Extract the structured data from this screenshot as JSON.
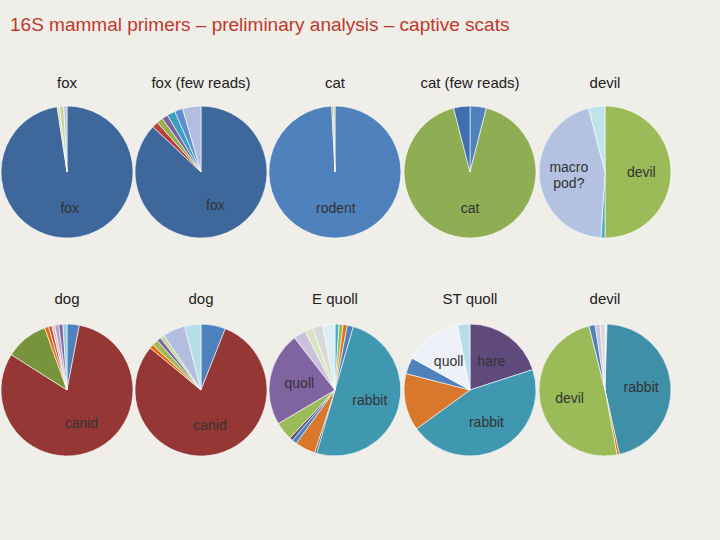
{
  "title": "16S mammal primers – preliminary analysis – captive scats",
  "chart_data": [
    {
      "type": "pie",
      "title": "fox",
      "categories": [
        "fox",
        null,
        null,
        null
      ],
      "values": [
        97.6,
        0.6,
        1.0,
        0.8
      ],
      "colors": [
        "#3e679c",
        "#d8d8b0",
        "#c9d49a",
        "#b9c9de"
      ]
    },
    {
      "type": "pie",
      "title": "fox (few reads)",
      "categories": [
        "fox",
        null,
        null,
        null,
        null,
        null,
        null
      ],
      "values": [
        87,
        1.5,
        1.5,
        1.5,
        2,
        2,
        4.5
      ],
      "colors": [
        "#3e679c",
        "#b7403d",
        "#8fb04a",
        "#7e62a0",
        "#3b9fbd",
        "#5b8fd0",
        "#b3bde0"
      ]
    },
    {
      "type": "pie",
      "title": "cat",
      "categories": [
        "rodent",
        null,
        null
      ],
      "values": [
        99.2,
        0.4,
        0.4
      ],
      "colors": [
        "#4f81bd",
        "#9bbb59",
        "#c9c59a"
      ]
    },
    {
      "type": "pie",
      "title": "cat (few reads)",
      "categories": [
        null,
        "cat",
        null
      ],
      "values": [
        4,
        92,
        4
      ],
      "colors": [
        "#4f81bd",
        "#8fad52",
        "#3e6fb0"
      ]
    },
    {
      "type": "pie",
      "title": "devil",
      "categories": [
        "devil",
        null,
        "macro pod?",
        null
      ],
      "values": [
        50,
        1,
        45,
        4
      ],
      "colors": [
        "#9bbb59",
        "#4bacc6",
        "#b3c2e0",
        "#bfe3ea"
      ]
    },
    {
      "type": "pie",
      "title": "dog",
      "categories": [
        null,
        "canid",
        null,
        null,
        null,
        null,
        null,
        null,
        null
      ],
      "values": [
        3,
        81,
        10.5,
        1,
        0.8,
        0.7,
        1,
        1,
        1
      ],
      "colors": [
        "#4f81bd",
        "#953735",
        "#77933c",
        "#e46c0a",
        "#c0504d",
        "#e6b9b8",
        "#b3a2c7",
        "#8064a2",
        "#93cddd"
      ]
    },
    {
      "type": "pie",
      "title": "dog",
      "categories": [
        null,
        "canid",
        null,
        null,
        null,
        null,
        null,
        null
      ],
      "values": [
        6,
        80,
        1,
        1.5,
        1,
        1,
        5.5,
        4
      ],
      "colors": [
        "#4f81bd",
        "#953735",
        "#e46c0a",
        "#9bbb59",
        "#8064a2",
        "#c3d69b",
        "#b3bde0",
        "#b7dee8"
      ]
    },
    {
      "type": "pie",
      "title": "E quoll",
      "categories": [
        null,
        null,
        null,
        null,
        "rabbit",
        null,
        null,
        null,
        null,
        null,
        "quoll",
        null,
        null,
        null,
        null
      ],
      "values": [
        1,
        1,
        1,
        1.5,
        50,
        0.5,
        5,
        1.2,
        0.8,
        4.5,
        23,
        3,
        2,
        2.5,
        3
      ],
      "colors": [
        "#4bacc6",
        "#9bbb59",
        "#e46c0a",
        "#4f81bd",
        "#3f97b0",
        "#595959",
        "#d9782d",
        "#4f81bd",
        "#604a7b",
        "#9bbb59",
        "#8064a2",
        "#ccc1da",
        "#d7e4bd",
        "#d9d9d9",
        "#dbeef3"
      ]
    },
    {
      "type": "pie",
      "title": "ST quoll",
      "categories": [
        "hare",
        "rabbit",
        null,
        null,
        "quoll",
        null
      ],
      "values": [
        20,
        45,
        14,
        4,
        14,
        3
      ],
      "colors": [
        "#604a7b",
        "#3f97b0",
        "#d9782d",
        "#4f81bd",
        "#eef2f8",
        "#b7dee8"
      ]
    },
    {
      "type": "pie",
      "title": "devil",
      "categories": [
        null,
        "rabbit",
        null,
        "devil",
        null,
        null,
        null
      ],
      "values": [
        0.5,
        46,
        0.6,
        49,
        1.5,
        1.2,
        1.2
      ],
      "colors": [
        "#dbeef3",
        "#3f8fa8",
        "#e46c0a",
        "#9bbb59",
        "#4f81bd",
        "#ccc1da",
        "#d9d9d9"
      ]
    }
  ]
}
